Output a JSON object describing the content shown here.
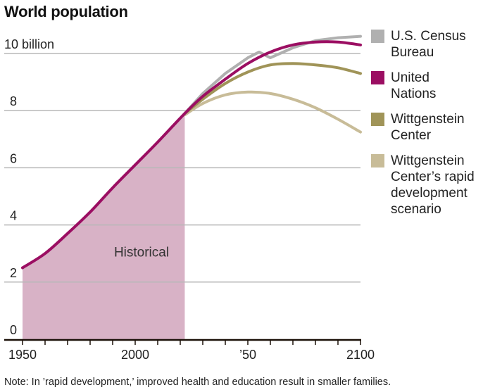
{
  "title": "World population",
  "note": "Note: In ’rapid development,’ improved health and education result in smaller families.",
  "colors": {
    "un": "#9b0e62",
    "census": "#b0b0b0",
    "wittgenstein": "#a09458",
    "rapid": "#c8bc98",
    "historical_fill": "#d8b2c6",
    "grid": "#b8b8b8",
    "axis": "#1a1008"
  },
  "legend": [
    {
      "label_lines": [
        "U.S. Census",
        "Bureau"
      ],
      "color": "#b0b0b0"
    },
    {
      "label_lines": [
        "United",
        "Nations"
      ],
      "color": "#9b0e62"
    },
    {
      "label_lines": [
        "Wittgenstein",
        "Center"
      ],
      "color": "#a09458"
    },
    {
      "label_lines": [
        "Wittgenstein",
        "Center’s rapid",
        "development",
        "scenario"
      ],
      "color": "#c8bc98"
    }
  ],
  "chart_data": {
    "type": "line",
    "title": "World population",
    "xlabel": "",
    "ylabel": "",
    "xlim": [
      1950,
      2100
    ],
    "ylim": [
      0,
      10.6
    ],
    "y_ticks": [
      0,
      2,
      4,
      6,
      8,
      10
    ],
    "y_tick_labels": [
      "0",
      "2",
      "4",
      "6",
      "8",
      "10 billion"
    ],
    "x_ticks": [
      1950,
      2000,
      2050,
      2100
    ],
    "x_tick_labels": [
      "1950",
      "2000",
      "’50",
      "2100"
    ],
    "x_minor_tick_step": 10,
    "grid": true,
    "legend_position": "right",
    "annotations": [
      {
        "text": "Historical",
        "x": 1985,
        "y": 2.9
      }
    ],
    "historical_range": [
      1950,
      2022
    ],
    "series": [
      {
        "name": "United Nations",
        "key": "un",
        "x": [
          1950,
          1960,
          1970,
          1980,
          1990,
          2000,
          2010,
          2022,
          2030,
          2040,
          2050,
          2060,
          2070,
          2080,
          2090,
          2100
        ],
        "values": [
          2.5,
          3.0,
          3.7,
          4.45,
          5.3,
          6.1,
          6.9,
          7.9,
          8.5,
          9.1,
          9.65,
          10.05,
          10.3,
          10.4,
          10.4,
          10.3
        ]
      },
      {
        "name": "U.S. Census Bureau",
        "key": "census",
        "x": [
          2022,
          2030,
          2040,
          2050,
          2055,
          2060,
          2070,
          2080,
          2090,
          2100
        ],
        "values": [
          7.9,
          8.6,
          9.3,
          9.85,
          10.05,
          9.85,
          10.2,
          10.45,
          10.55,
          10.6
        ]
      },
      {
        "name": "Wittgenstein Center",
        "key": "wittgenstein",
        "x": [
          2022,
          2030,
          2040,
          2050,
          2060,
          2070,
          2080,
          2090,
          2100
        ],
        "values": [
          7.9,
          8.4,
          8.95,
          9.35,
          9.6,
          9.65,
          9.6,
          9.5,
          9.3
        ]
      },
      {
        "name": "Wittgenstein Center’s rapid development scenario",
        "key": "rapid",
        "x": [
          2022,
          2030,
          2040,
          2050,
          2060,
          2070,
          2080,
          2090,
          2100
        ],
        "values": [
          7.85,
          8.25,
          8.55,
          8.65,
          8.6,
          8.4,
          8.1,
          7.7,
          7.25
        ]
      }
    ]
  }
}
